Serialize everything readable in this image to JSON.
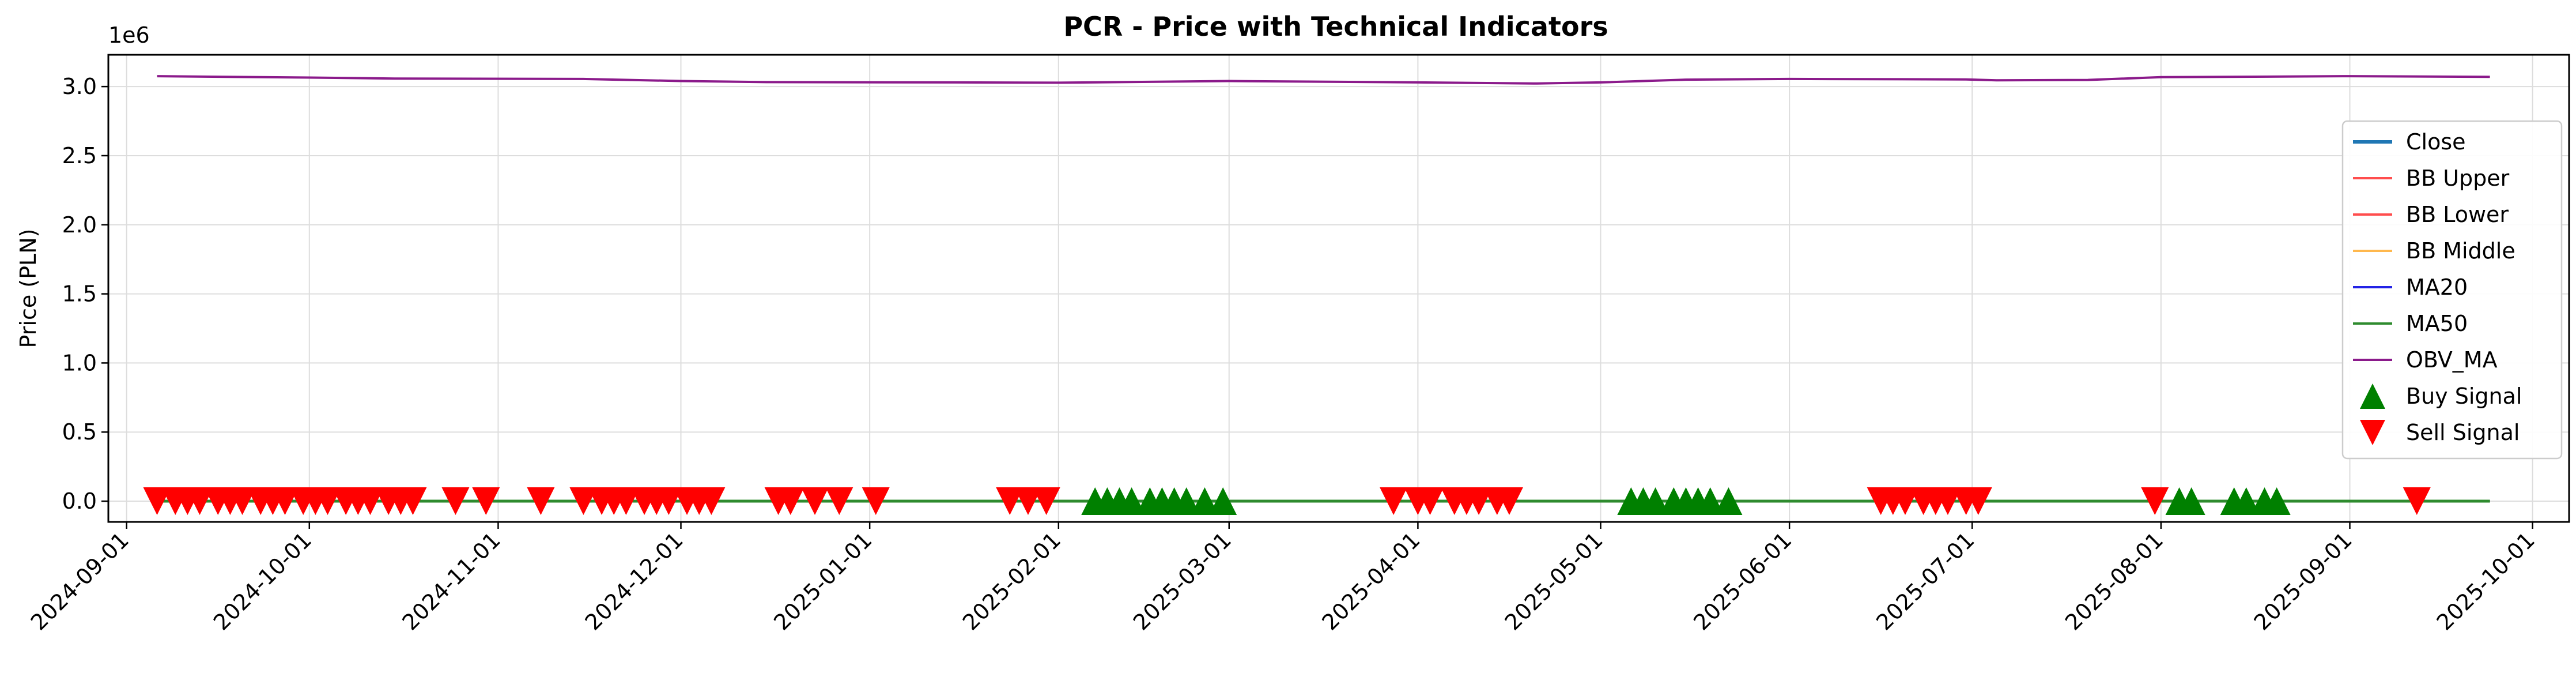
{
  "chart_data": {
    "type": "line",
    "title": "PCR - Price with Technical Indicators",
    "ylabel": "Price (PLN)",
    "xlabel": "",
    "y_offset_label": "1e6",
    "y_scale_factor": 1000000,
    "xlim": [
      "2024-08-29",
      "2025-10-07"
    ],
    "ylim": [
      -150000,
      3230000
    ],
    "grid": true,
    "legend_position": "right",
    "x_ticks": [
      "2024-09-01",
      "2024-10-01",
      "2024-11-01",
      "2024-12-01",
      "2025-01-01",
      "2025-02-01",
      "2025-03-01",
      "2025-04-01",
      "2025-05-01",
      "2025-06-01",
      "2025-07-01",
      "2025-08-01",
      "2025-09-01",
      "2025-10-01"
    ],
    "y_ticks": [
      "0.0",
      "0.5",
      "1.0",
      "1.5",
      "2.0",
      "2.5",
      "3.0"
    ],
    "colors": {
      "close": "#1f77b4",
      "bb_upper": "#ff4d4d",
      "bb_lower": "#ff4d4d",
      "bb_middle": "#ffb84d",
      "ma20": "#2323e6",
      "ma50": "#2e8b2e",
      "obv_ma": "#8b1a8b",
      "buy": "#008000",
      "sell": "#ff0000"
    },
    "legend": [
      {
        "key": "close",
        "label": "Close",
        "kind": "line"
      },
      {
        "key": "bb_upper",
        "label": "BB Upper",
        "kind": "line"
      },
      {
        "key": "bb_lower",
        "label": "BB Lower",
        "kind": "line"
      },
      {
        "key": "bb_middle",
        "label": "BB Middle",
        "kind": "line"
      },
      {
        "key": "ma20",
        "label": "MA20",
        "kind": "line"
      },
      {
        "key": "ma50",
        "label": "MA50",
        "kind": "line"
      },
      {
        "key": "obv_ma",
        "label": "OBV_MA",
        "kind": "line"
      },
      {
        "key": "buy",
        "label": "Buy Signal",
        "kind": "marker-up"
      },
      {
        "key": "sell",
        "label": "Sell Signal",
        "kind": "marker-down"
      }
    ],
    "price_range": [
      "2024-09-06",
      "2025-09-24"
    ],
    "price_value": 0,
    "obv_ma": [
      [
        "2024-09-06",
        3075000
      ],
      [
        "2024-10-01",
        3065000
      ],
      [
        "2024-10-15",
        3058000
      ],
      [
        "2024-11-15",
        3055000
      ],
      [
        "2024-12-01",
        3040000
      ],
      [
        "2024-12-15",
        3032000
      ],
      [
        "2025-01-15",
        3030000
      ],
      [
        "2025-02-01",
        3028000
      ],
      [
        "2025-03-01",
        3040000
      ],
      [
        "2025-04-01",
        3030000
      ],
      [
        "2025-04-20",
        3022000
      ],
      [
        "2025-05-01",
        3030000
      ],
      [
        "2025-05-15",
        3050000
      ],
      [
        "2025-06-01",
        3055000
      ],
      [
        "2025-06-30",
        3052000
      ],
      [
        "2025-07-05",
        3045000
      ],
      [
        "2025-07-20",
        3048000
      ],
      [
        "2025-08-01",
        3068000
      ],
      [
        "2025-09-01",
        3075000
      ],
      [
        "2025-09-24",
        3070000
      ]
    ],
    "buy_signals": [
      "2025-02-07",
      "2025-02-09",
      "2025-02-11",
      "2025-02-13",
      "2025-02-16",
      "2025-02-18",
      "2025-02-20",
      "2025-02-22",
      "2025-02-25",
      "2025-02-28",
      "2025-05-06",
      "2025-05-08",
      "2025-05-10",
      "2025-05-13",
      "2025-05-15",
      "2025-05-17",
      "2025-05-19",
      "2025-05-22",
      "2025-08-04",
      "2025-08-06",
      "2025-08-13",
      "2025-08-15",
      "2025-08-18",
      "2025-08-20"
    ],
    "sell_signals": [
      "2024-09-06",
      "2024-09-09",
      "2024-09-11",
      "2024-09-13",
      "2024-09-16",
      "2024-09-18",
      "2024-09-20",
      "2024-09-23",
      "2024-09-25",
      "2024-09-27",
      "2024-09-30",
      "2024-10-02",
      "2024-10-04",
      "2024-10-07",
      "2024-10-09",
      "2024-10-11",
      "2024-10-14",
      "2024-10-16",
      "2024-10-18",
      "2024-10-25",
      "2024-10-30",
      "2024-11-08",
      "2024-11-15",
      "2024-11-18",
      "2024-11-20",
      "2024-11-22",
      "2024-11-25",
      "2024-11-27",
      "2024-11-29",
      "2024-12-02",
      "2024-12-04",
      "2024-12-06",
      "2024-12-17",
      "2024-12-19",
      "2024-12-23",
      "2024-12-27",
      "2025-01-02",
      "2025-01-24",
      "2025-01-27",
      "2025-01-30",
      "2025-03-28",
      "2025-04-01",
      "2025-04-03",
      "2025-04-07",
      "2025-04-09",
      "2025-04-11",
      "2025-04-14",
      "2025-04-16",
      "2025-06-16",
      "2025-06-18",
      "2025-06-20",
      "2025-06-23",
      "2025-06-25",
      "2025-06-27",
      "2025-06-30",
      "2025-07-02",
      "2025-07-31",
      "2025-09-12"
    ]
  }
}
